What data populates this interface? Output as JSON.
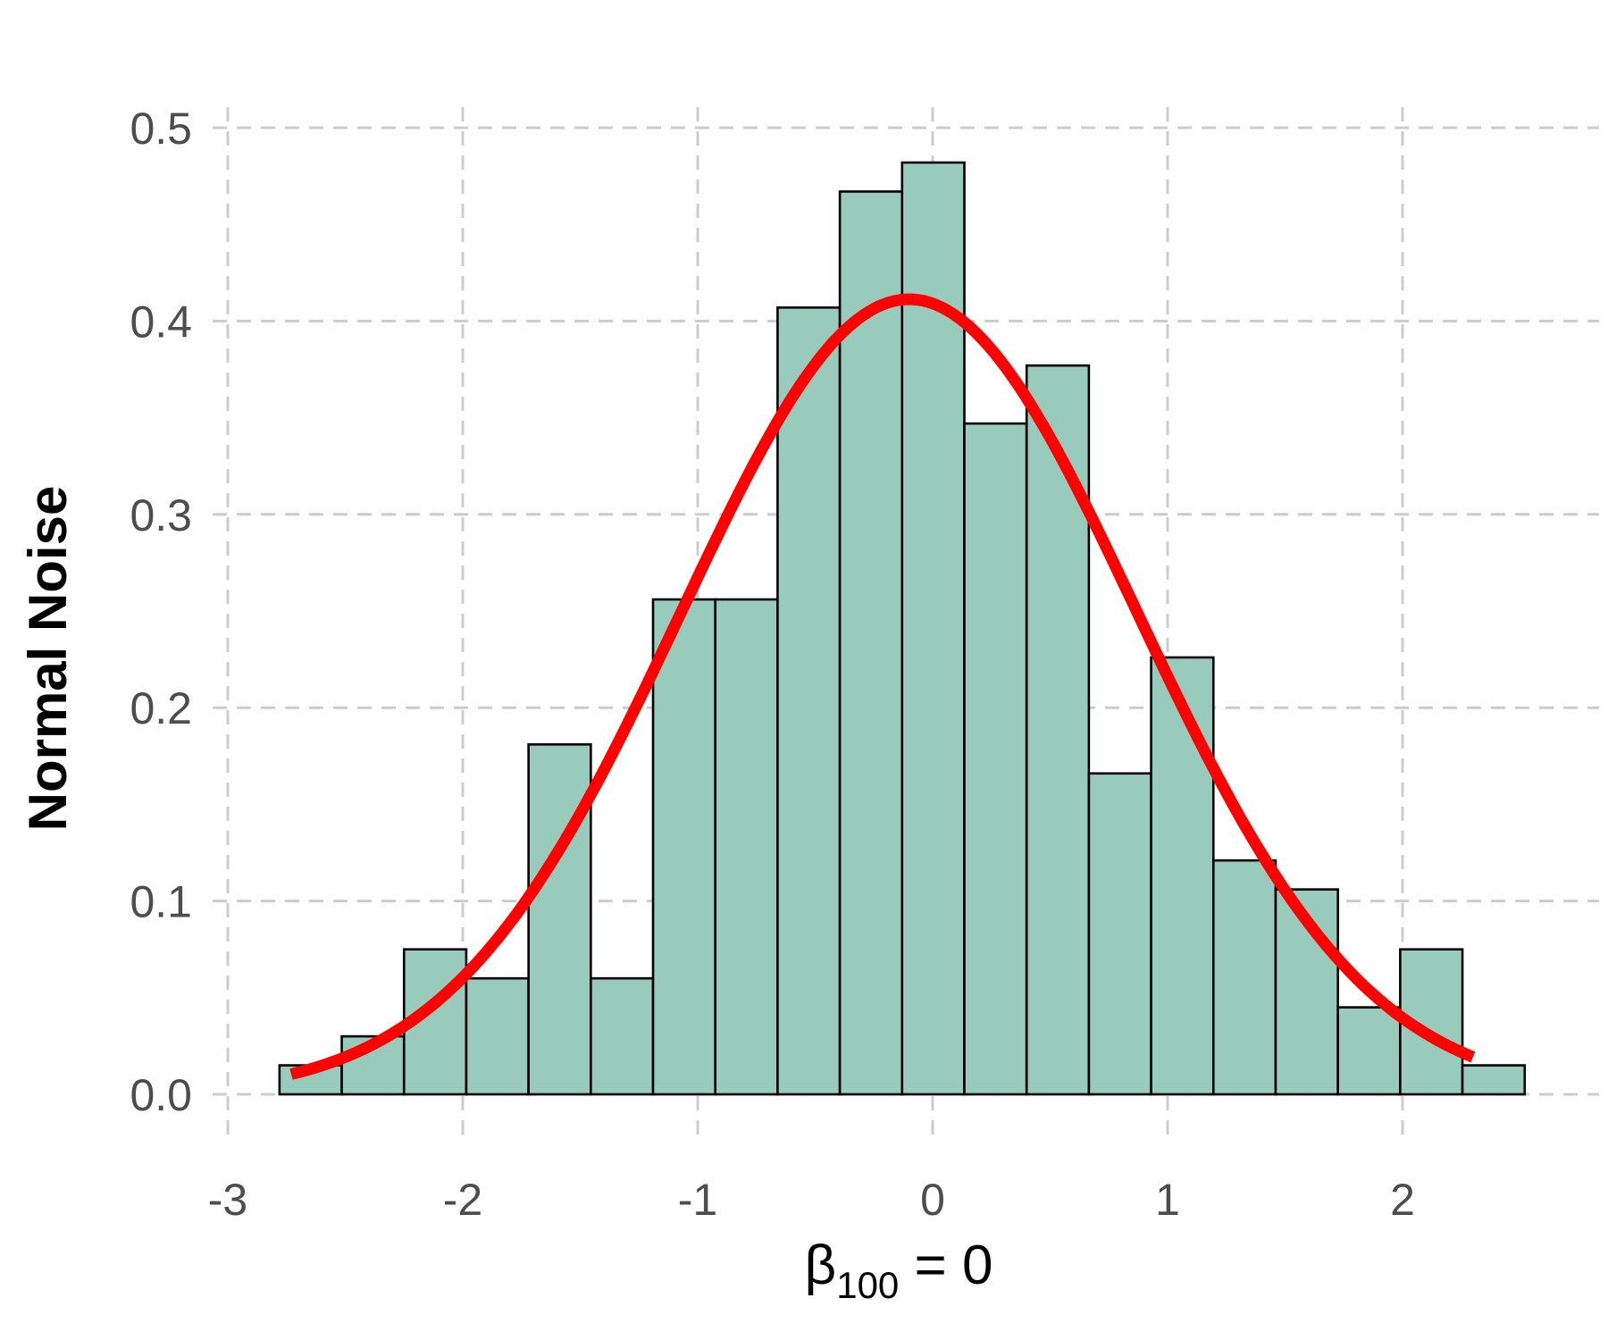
{
  "chart_data": {
    "type": "bar",
    "subtype": "histogram-with-density",
    "xlabel": {
      "prefix": "β",
      "subscript": "100",
      "suffix": " = 0"
    },
    "ylabel": "Normal Noise",
    "xlim": [
      -3,
      2.7
    ],
    "ylim": [
      0,
      0.5
    ],
    "x_ticks": [
      -3,
      -2,
      -1,
      0,
      1,
      2
    ],
    "x_tick_labels": [
      "-3",
      "-2",
      "-1",
      "0",
      "1",
      "2"
    ],
    "y_ticks": [
      0,
      0.1,
      0.2,
      0.3,
      0.4,
      0.5
    ],
    "y_tick_labels": [
      "0.0",
      "0.1",
      "0.2",
      "0.3",
      "0.4",
      "0.5"
    ],
    "grid": true,
    "legend": "none",
    "bin_edges": [
      -2.78,
      -2.515,
      -2.25,
      -1.985,
      -1.72,
      -1.455,
      -1.19,
      -0.925,
      -0.66,
      -0.395,
      -0.13,
      0.135,
      0.4,
      0.665,
      0.93,
      1.195,
      1.46,
      1.725,
      1.99,
      2.255,
      2.52
    ],
    "values": [
      0.015,
      0.03,
      0.075,
      0.06,
      0.181,
      0.06,
      0.256,
      0.256,
      0.407,
      0.467,
      0.482,
      0.347,
      0.377,
      0.166,
      0.226,
      0.121,
      0.106,
      0.045,
      0.075,
      0.015
    ],
    "density_curve": {
      "mean": -0.1,
      "sd": 0.97,
      "x_range": [
        -2.73,
        2.3
      ]
    },
    "colors": {
      "bar_fill": "#99cbbd",
      "bar_stroke": "#000000",
      "curve": "#ff0000",
      "grid": "#cccccc",
      "tick_text": "#4d4d4d"
    }
  }
}
